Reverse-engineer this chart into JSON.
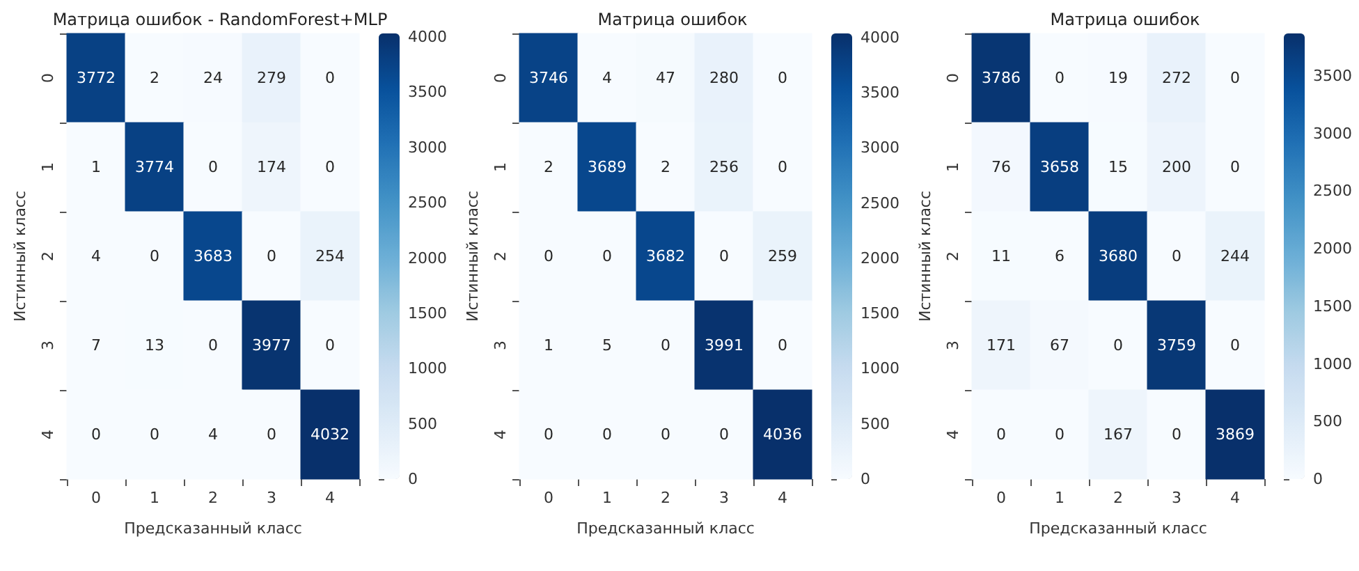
{
  "chart_data": [
    {
      "type": "heatmap",
      "title": "Матрица ошибок - RandomForest+MLP",
      "xlabel": "Предсказанный класс",
      "ylabel": "Истинный класс",
      "categories": [
        "0",
        "1",
        "2",
        "3",
        "4"
      ],
      "y_categories": [
        "0",
        "1",
        "2",
        "3",
        "4"
      ],
      "cells": [
        [
          3772,
          2,
          24,
          279,
          0
        ],
        [
          1,
          3774,
          0,
          174,
          0
        ],
        [
          4,
          0,
          3683,
          0,
          254
        ],
        [
          7,
          13,
          0,
          3977,
          0
        ],
        [
          0,
          0,
          4,
          0,
          4032
        ]
      ],
      "clim": [
        0,
        4032
      ],
      "cticks": [
        0,
        500,
        1000,
        1500,
        2000,
        2500,
        3000,
        3500,
        4000
      ],
      "data_labels": true
    },
    {
      "type": "heatmap",
      "title": "Матрица ошибок",
      "xlabel": "Предсказанный класс",
      "ylabel": "Истинный класс",
      "categories": [
        "0",
        "1",
        "2",
        "3",
        "4"
      ],
      "y_categories": [
        "0",
        "1",
        "2",
        "3",
        "4"
      ],
      "cells": [
        [
          3746,
          4,
          47,
          280,
          0
        ],
        [
          2,
          3689,
          2,
          256,
          0
        ],
        [
          0,
          0,
          3682,
          0,
          259
        ],
        [
          1,
          5,
          0,
          3991,
          0
        ],
        [
          0,
          0,
          0,
          0,
          4036
        ]
      ],
      "clim": [
        0,
        4036
      ],
      "cticks": [
        0,
        500,
        1000,
        1500,
        2000,
        2500,
        3000,
        3500,
        4000
      ],
      "data_labels": true
    },
    {
      "type": "heatmap",
      "title": "Матрица ошибок",
      "xlabel": "Предсказанный класс",
      "ylabel": "Истинный класс",
      "categories": [
        "0",
        "1",
        "2",
        "3",
        "4"
      ],
      "y_categories": [
        "0",
        "1",
        "2",
        "3",
        "4"
      ],
      "cells": [
        [
          3786,
          0,
          19,
          272,
          0
        ],
        [
          76,
          3658,
          15,
          200,
          0
        ],
        [
          11,
          6,
          3680,
          0,
          244
        ],
        [
          171,
          67,
          0,
          3759,
          0
        ],
        [
          0,
          0,
          167,
          0,
          3869
        ]
      ],
      "clim": [
        0,
        3869
      ],
      "cticks": [
        0,
        500,
        1000,
        1500,
        2000,
        2500,
        3000,
        3500
      ],
      "data_labels": true
    }
  ]
}
